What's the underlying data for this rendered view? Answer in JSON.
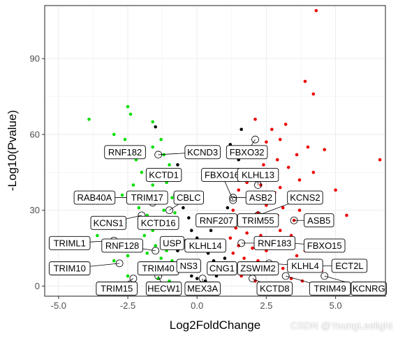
{
  "chart_data": {
    "type": "scatter",
    "title": "",
    "xlabel": "Log2FoldChange",
    "ylabel": "-Log10(Pvalue)",
    "xlim": [
      -5.5,
      6.8
    ],
    "ylim": [
      -4,
      111
    ],
    "x_ticks": [
      -5,
      -2.5,
      0,
      2.5,
      5
    ],
    "x_tick_labels": [
      "-5.0",
      "-2.5",
      "0.0",
      "2.5",
      "5.0"
    ],
    "y_ticks": [
      0,
      30,
      60,
      90
    ],
    "y_tick_labels": [
      "0",
      "30",
      "60",
      "90"
    ],
    "grid": true,
    "theme": "bw",
    "colors": {
      "down": "#00e000",
      "ns": "#000000",
      "up": "#ee0000"
    },
    "series": [
      {
        "color": "#00e000",
        "points": [
          [
            -3.9,
            66
          ],
          [
            -2.5,
            71
          ],
          [
            -2.4,
            68
          ],
          [
            -3.0,
            60
          ],
          [
            -2.6,
            58
          ],
          [
            -1.6,
            65
          ],
          [
            -1.3,
            58
          ],
          [
            -1.6,
            55
          ],
          [
            -1.9,
            54
          ],
          [
            -1.2,
            52
          ],
          [
            -2.2,
            50
          ],
          [
            -1.0,
            48
          ],
          [
            -1.4,
            46
          ],
          [
            -2.0,
            45
          ],
          [
            -1.7,
            43
          ],
          [
            -2.3,
            40
          ],
          [
            -1.6,
            40
          ],
          [
            -1.1,
            41
          ],
          [
            -2.7,
            36
          ],
          [
            -1.9,
            36
          ],
          [
            -1.3,
            37
          ],
          [
            -0.9,
            35
          ],
          [
            -2.4,
            33
          ],
          [
            -1.5,
            33
          ],
          [
            -2.1,
            31
          ],
          [
            -1.2,
            30
          ],
          [
            -0.8,
            29
          ],
          [
            -1.8,
            28
          ],
          [
            -1.4,
            26
          ],
          [
            -2.6,
            25
          ],
          [
            -1.0,
            24
          ],
          [
            -1.6,
            22
          ],
          [
            -1.9,
            20
          ],
          [
            -1.2,
            19
          ],
          [
            -0.9,
            18
          ],
          [
            -2.2,
            17
          ],
          [
            -1.5,
            16
          ],
          [
            -1.1,
            14
          ],
          [
            -1.8,
            13
          ],
          [
            -2.5,
            12
          ],
          [
            -1.3,
            11
          ],
          [
            -0.9,
            10
          ],
          [
            -1.6,
            9
          ],
          [
            -2.0,
            8
          ],
          [
            -1.2,
            7
          ],
          [
            -3.6,
            20
          ],
          [
            -3.0,
            10
          ],
          [
            -2.5,
            4
          ],
          [
            -1.7,
            5
          ],
          [
            -1.4,
            3
          ],
          [
            -1.0,
            2
          ]
        ]
      },
      {
        "color": "#000000",
        "points": [
          [
            -0.9,
            42
          ],
          [
            -0.8,
            36
          ],
          [
            -0.7,
            48
          ],
          [
            -0.5,
            31
          ],
          [
            -0.3,
            27
          ],
          [
            -0.2,
            22
          ],
          [
            0.0,
            19
          ],
          [
            0.2,
            16
          ],
          [
            0.4,
            13
          ],
          [
            0.6,
            10
          ],
          [
            0.8,
            8
          ],
          [
            0.9,
            6
          ],
          [
            -0.6,
            9
          ],
          [
            -0.4,
            6
          ],
          [
            -0.2,
            4
          ],
          [
            0.0,
            3
          ],
          [
            0.3,
            2
          ],
          [
            -0.7,
            14
          ],
          [
            1.0,
            11
          ],
          [
            0.5,
            22
          ],
          [
            1.1,
            31
          ],
          [
            -0.4,
            18
          ],
          [
            0.7,
            4
          ],
          [
            1.6,
            62
          ],
          [
            1.2,
            56
          ],
          [
            1.5,
            50
          ],
          [
            1.0,
            45
          ],
          [
            -1.5,
            63
          ]
        ]
      },
      {
        "color": "#ee0000",
        "points": [
          [
            4.3,
            109
          ],
          [
            3.9,
            81
          ],
          [
            4.2,
            76
          ],
          [
            2.1,
            66
          ],
          [
            3.2,
            64
          ],
          [
            2.7,
            62
          ],
          [
            3.0,
            58
          ],
          [
            2.5,
            57
          ],
          [
            2.2,
            55
          ],
          [
            4.0,
            55
          ],
          [
            4.6,
            54
          ],
          [
            3.6,
            52
          ],
          [
            1.7,
            51
          ],
          [
            2.9,
            50
          ],
          [
            2.4,
            48
          ],
          [
            3.3,
            47
          ],
          [
            2.0,
            46
          ],
          [
            1.4,
            44
          ],
          [
            2.6,
            43
          ],
          [
            3.7,
            42
          ],
          [
            1.8,
            41
          ],
          [
            2.3,
            40
          ],
          [
            3.0,
            39
          ],
          [
            1.5,
            38
          ],
          [
            2.8,
            37
          ],
          [
            4.4,
            36
          ],
          [
            2.1,
            35
          ],
          [
            3.4,
            34
          ],
          [
            1.9,
            33
          ],
          [
            2.5,
            32
          ],
          [
            3.1,
            31
          ],
          [
            1.3,
            30
          ],
          [
            2.2,
            29
          ],
          [
            2.9,
            28
          ],
          [
            1.6,
            27
          ],
          [
            3.5,
            26
          ],
          [
            2.0,
            25
          ],
          [
            2.6,
            24
          ],
          [
            1.4,
            23
          ],
          [
            3.0,
            22
          ],
          [
            1.8,
            21
          ],
          [
            2.3,
            20
          ],
          [
            1.2,
            19
          ],
          [
            2.7,
            18
          ],
          [
            3.2,
            17
          ],
          [
            1.5,
            16
          ],
          [
            2.0,
            15
          ],
          [
            2.5,
            14
          ],
          [
            1.3,
            13
          ],
          [
            3.6,
            12
          ],
          [
            1.7,
            11
          ],
          [
            2.2,
            10
          ],
          [
            2.8,
            9
          ],
          [
            1.4,
            8
          ],
          [
            3.1,
            7
          ],
          [
            1.9,
            6
          ],
          [
            2.4,
            5
          ],
          [
            1.6,
            4
          ],
          [
            3.4,
            3
          ],
          [
            2.1,
            2
          ],
          [
            5.0,
            38
          ],
          [
            6.6,
            50
          ],
          [
            5.4,
            28
          ],
          [
            4.8,
            18
          ],
          [
            3.9,
            14
          ],
          [
            5.2,
            10
          ],
          [
            4.5,
            6
          ],
          [
            3.8,
            2
          ],
          [
            4.2,
            45
          ],
          [
            3.7,
            30
          ],
          [
            3.4,
            20
          ]
        ]
      }
    ],
    "annotations": [
      {
        "label": "RNF182",
        "x": -2.0,
        "y": 53,
        "lx": -2.6,
        "ly": 53
      },
      {
        "label": "KCND3",
        "x": -1.4,
        "y": 52,
        "lx": 0.2,
        "ly": 53
      },
      {
        "label": "FBXO32",
        "x": 2.1,
        "y": 58,
        "lx": 1.8,
        "ly": 53
      },
      {
        "label": "KCTD1",
        "x": -1.2,
        "y": 43,
        "lx": -1.2,
        "ly": 44
      },
      {
        "label": "FBXO16",
        "x": 1.3,
        "y": 34,
        "lx": 0.9,
        "ly": 44
      },
      {
        "label": "KLHL13",
        "x": 2.2,
        "y": 40,
        "lx": 2.2,
        "ly": 44
      },
      {
        "label": "RAB40A",
        "x": -1.8,
        "y": 35,
        "lx": -3.7,
        "ly": 35
      },
      {
        "label": "TRIM17",
        "x": -1.6,
        "y": 33,
        "lx": -1.8,
        "ly": 35
      },
      {
        "label": "CBLC",
        "x": -1.0,
        "y": 30,
        "lx": -0.3,
        "ly": 35
      },
      {
        "label": "ASB2",
        "x": 1.3,
        "y": 35,
        "lx": 2.3,
        "ly": 35
      },
      {
        "label": "KCNS2",
        "x": 2.2,
        "y": 28,
        "lx": 3.9,
        "ly": 35
      },
      {
        "label": "KCNS1",
        "x": -2.0,
        "y": 28,
        "lx": -3.2,
        "ly": 25
      },
      {
        "label": "KCTD16",
        "x": -1.3,
        "y": 26,
        "lx": -1.4,
        "ly": 25
      },
      {
        "label": "RNF207",
        "x": 1.0,
        "y": 26,
        "lx": 0.7,
        "ly": 26
      },
      {
        "label": "TRIM55",
        "x": 2.5,
        "y": 25,
        "lx": 2.2,
        "ly": 26
      },
      {
        "label": "ASB5",
        "x": 3.5,
        "y": 26,
        "lx": 4.4,
        "ly": 26
      },
      {
        "label": "TRIML1",
        "x": -3.0,
        "y": 18,
        "lx": -4.6,
        "ly": 17
      },
      {
        "label": "RNF128",
        "x": -1.5,
        "y": 14,
        "lx": -2.7,
        "ly": 16
      },
      {
        "label": "USP",
        "x": -0.6,
        "y": 16,
        "lx": -0.9,
        "ly": 17
      },
      {
        "label": "KLHL14",
        "x": 0.5,
        "y": 16,
        "lx": 0.3,
        "ly": 16
      },
      {
        "label": "RNF183",
        "x": 1.6,
        "y": 17,
        "lx": 2.8,
        "ly": 17
      },
      {
        "label": "FBXO15",
        "x": 3.4,
        "y": 17,
        "lx": 4.6,
        "ly": 16
      },
      {
        "label": "TRIM10",
        "x": -2.8,
        "y": 9,
        "lx": -4.6,
        "ly": 7
      },
      {
        "label": "TRIM40",
        "x": -1.1,
        "y": 8,
        "lx": -1.4,
        "ly": 7
      },
      {
        "label": "NS3",
        "x": -0.4,
        "y": 8,
        "lx": -0.3,
        "ly": 8
      },
      {
        "label": "CNG1",
        "x": 0.8,
        "y": 7,
        "lx": 0.9,
        "ly": 7
      },
      {
        "label": "ZSWIM2",
        "x": 1.2,
        "y": 6,
        "lx": 2.2,
        "ly": 7
      },
      {
        "label": "KLHL4",
        "x": 2.6,
        "y": 9,
        "lx": 3.9,
        "ly": 8
      },
      {
        "label": "ECT2L",
        "x": 3.9,
        "y": 8,
        "lx": 5.5,
        "ly": 8
      },
      {
        "label": "TRIM15",
        "x": -2.3,
        "y": 3,
        "lx": -2.9,
        "ly": -1
      },
      {
        "label": "HECW1",
        "x": -1.4,
        "y": 4,
        "lx": -1.2,
        "ly": -1
      },
      {
        "label": "MEX3A",
        "x": 0.2,
        "y": 3,
        "lx": 0.2,
        "ly": -1
      },
      {
        "label": "KCTD8",
        "x": 2.0,
        "y": 3,
        "lx": 2.8,
        "ly": -1
      },
      {
        "label": "TRIM49",
        "x": 3.2,
        "y": 4,
        "lx": 4.8,
        "ly": -1
      },
      {
        "label": "KCNRG",
        "x": 4.6,
        "y": 4,
        "lx": 6.2,
        "ly": -1
      }
    ]
  },
  "watermark": "CSDN @YoungLeelight"
}
